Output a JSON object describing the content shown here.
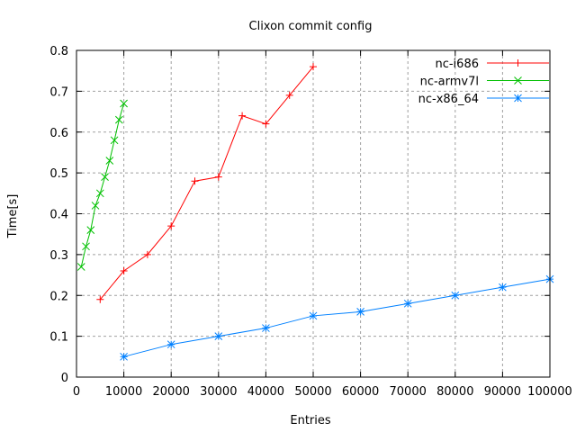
{
  "chart_data": {
    "type": "line",
    "title": "Clixon commit config",
    "xlabel": "Entries",
    "ylabel": "Time[s]",
    "xlim": [
      0,
      100000
    ],
    "ylim": [
      0,
      0.8
    ],
    "xticks": [
      "0",
      "10000",
      "20000",
      "30000",
      "40000",
      "50000",
      "60000",
      "70000",
      "80000",
      "90000",
      "100000"
    ],
    "yticks": [
      "0",
      "0.1",
      "0.2",
      "0.3",
      "0.4",
      "0.5",
      "0.6",
      "0.7",
      "0.8"
    ],
    "grid": true,
    "legend_position": "top-right",
    "series": [
      {
        "name": "nc-i686",
        "color": "#ff0000",
        "marker": "plus",
        "x": [
          5000,
          10000,
          15000,
          20000,
          25000,
          30000,
          35000,
          40000,
          45000,
          50000
        ],
        "y": [
          0.19,
          0.26,
          0.3,
          0.37,
          0.48,
          0.49,
          0.64,
          0.62,
          0.69,
          0.76
        ]
      },
      {
        "name": "nc-armv7l",
        "color": "#00c000",
        "marker": "cross",
        "x": [
          1000,
          2000,
          3000,
          4000,
          5000,
          6000,
          7000,
          8000,
          9000,
          10000
        ],
        "y": [
          0.27,
          0.32,
          0.36,
          0.42,
          0.45,
          0.49,
          0.53,
          0.58,
          0.63,
          0.67
        ]
      },
      {
        "name": "nc-x86_64",
        "color": "#0080ff",
        "marker": "star",
        "x": [
          10000,
          20000,
          30000,
          40000,
          50000,
          60000,
          70000,
          80000,
          90000,
          100000
        ],
        "y": [
          0.05,
          0.08,
          0.1,
          0.12,
          0.15,
          0.16,
          0.18,
          0.2,
          0.22,
          0.24
        ]
      }
    ]
  }
}
